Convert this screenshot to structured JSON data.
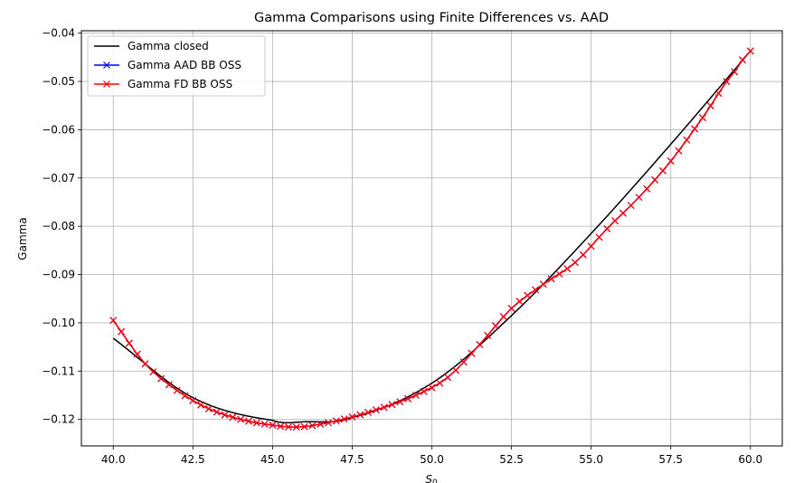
{
  "chart_data": {
    "type": "line",
    "title": "Gamma Comparisons using Finite Differences vs. AAD",
    "xlabel": "S",
    "xlabel_subscript": "0",
    "ylabel": "Gamma",
    "xlim": [
      39.0,
      61.0
    ],
    "ylim": [
      -0.1255,
      -0.0395
    ],
    "xticks": [
      40.0,
      42.5,
      45.0,
      47.5,
      50.0,
      52.5,
      55.0,
      57.5,
      60.0
    ],
    "xtick_labels": [
      "40.0",
      "42.5",
      "45.0",
      "47.5",
      "50.0",
      "52.5",
      "55.0",
      "57.5",
      "60.0"
    ],
    "yticks": [
      -0.12,
      -0.11,
      -0.1,
      -0.09,
      -0.08,
      -0.07,
      -0.06,
      -0.05,
      -0.04
    ],
    "ytick_labels": [
      "−0.12",
      "−0.11",
      "−0.10",
      "−0.09",
      "−0.08",
      "−0.07",
      "−0.06",
      "−0.05",
      "−0.04"
    ],
    "grid": true,
    "legend_position": "upper-left",
    "x_range": [
      40.0,
      60.0
    ],
    "n_points": 81,
    "series": [
      {
        "name": "Gamma closed",
        "color": "#000000",
        "marker": "none",
        "x": [
          40,
          42.5,
          45,
          46,
          47.5,
          50,
          52.5,
          55,
          57.5,
          60
        ],
        "y": [
          -0.1032,
          -0.1155,
          -0.1202,
          -0.1205,
          -0.1196,
          -0.1125,
          -0.0985,
          -0.0815,
          -0.063,
          -0.0437
        ]
      },
      {
        "name": "Gamma AAD BB OSS",
        "color": "#0000ff",
        "marker": "x",
        "x": [
          40,
          41,
          42,
          43,
          44,
          45,
          45.75,
          46.5,
          47.5,
          48.5,
          49.5,
          50.5,
          51.5,
          52.5,
          53.5,
          54.5,
          55.5,
          56.5,
          57.5,
          58.5,
          59.5,
          60
        ],
        "y": [
          -0.0995,
          -0.1085,
          -0.114,
          -0.1178,
          -0.12,
          -0.1212,
          -0.1216,
          -0.121,
          -0.1195,
          -0.1175,
          -0.115,
          -0.1113,
          -0.1045,
          -0.097,
          -0.092,
          -0.0875,
          -0.0805,
          -0.074,
          -0.0665,
          -0.0575,
          -0.048,
          -0.0437
        ]
      },
      {
        "name": "Gamma FD BB OSS",
        "color": "#ff0000",
        "marker": "x",
        "x": [
          40,
          41,
          42,
          43,
          44,
          45,
          45.75,
          46.5,
          47.5,
          48.5,
          49.5,
          50.5,
          51.5,
          52.5,
          53.5,
          54.5,
          55.5,
          56.5,
          57.5,
          58.5,
          59.5,
          60
        ],
        "y": [
          -0.0995,
          -0.1085,
          -0.114,
          -0.1178,
          -0.12,
          -0.1212,
          -0.1216,
          -0.121,
          -0.1195,
          -0.1175,
          -0.115,
          -0.1113,
          -0.1045,
          -0.097,
          -0.092,
          -0.0875,
          -0.0805,
          -0.074,
          -0.0665,
          -0.0575,
          -0.048,
          -0.0437
        ]
      }
    ]
  }
}
